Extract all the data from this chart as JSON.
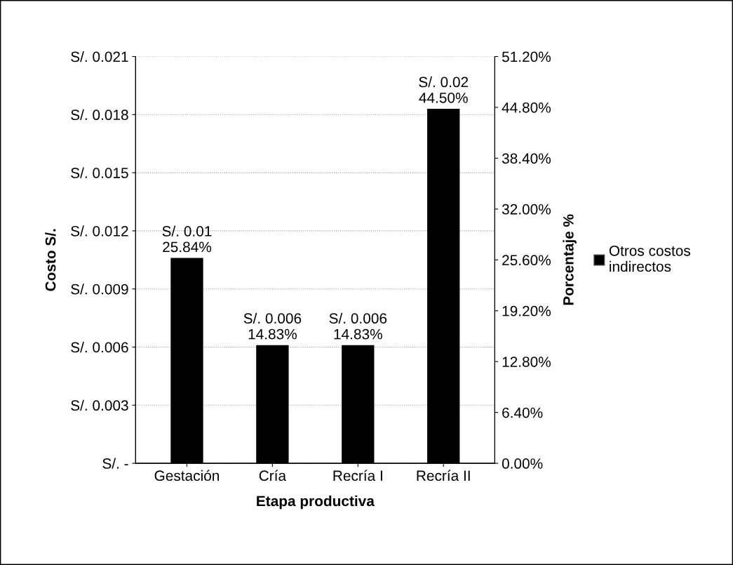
{
  "chart_data": {
    "type": "bar",
    "xlabel": "Etapa productiva",
    "ylabel": "Costo S/.",
    "y2label": "Porcentaje %",
    "categories": [
      "Gestación",
      "Cría",
      "Recría I",
      "Recría II"
    ],
    "series": [
      {
        "name": "Otros costos\nindirectos",
        "color": "#000000",
        "values": [
          0.0106,
          0.0061,
          0.0061,
          0.0183
        ],
        "value_labels": [
          "S/. 0.01\n25.84%",
          "S/. 0.006\n14.83%",
          "S/. 0.006\n14.83%",
          "S/. 0.02\n44.50%"
        ]
      }
    ],
    "ylim": [
      0,
      0.021
    ],
    "yticks": [
      {
        "value": 0,
        "label": "S/. -"
      },
      {
        "value": 0.003,
        "label": "S/. 0.003"
      },
      {
        "value": 0.006,
        "label": "S/. 0.006"
      },
      {
        "value": 0.009,
        "label": "S/. 0.009"
      },
      {
        "value": 0.012,
        "label": "S/. 0.012"
      },
      {
        "value": 0.015,
        "label": "S/. 0.015"
      },
      {
        "value": 0.018,
        "label": "S/. 0.018"
      },
      {
        "value": 0.021,
        "label": "S/. 0.021"
      }
    ],
    "y2lim": [
      0,
      51.2
    ],
    "y2ticks": [
      {
        "value": 0,
        "label": "0.00%"
      },
      {
        "value": 6.4,
        "label": "6.40%"
      },
      {
        "value": 12.8,
        "label": "12.80%"
      },
      {
        "value": 19.2,
        "label": "19.20%"
      },
      {
        "value": 25.6,
        "label": "25.60%"
      },
      {
        "value": 32,
        "label": "32.00%"
      },
      {
        "value": 38.4,
        "label": "38.40%"
      },
      {
        "value": 44.8,
        "label": "44.80%"
      },
      {
        "value": 51.2,
        "label": "51.20%"
      }
    ],
    "grid": "y",
    "legend": "right"
  }
}
